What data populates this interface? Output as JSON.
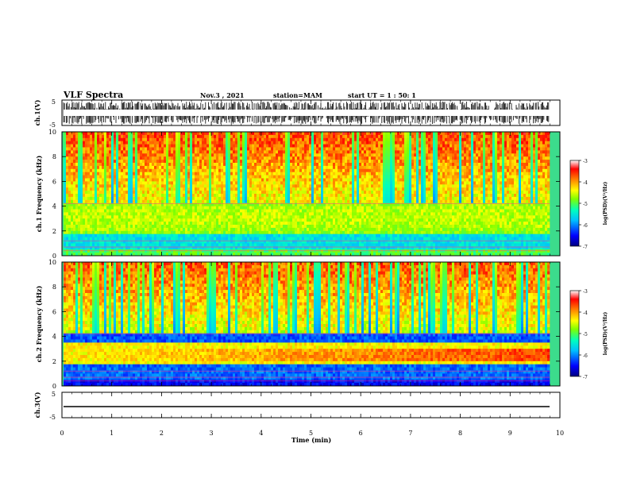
{
  "header": {
    "title": "VLF Spectra",
    "date": "Nov.3 , 2021",
    "station": "station=MAM",
    "start": "start UT = 1 : 50: 1"
  },
  "chart_data": [
    {
      "type": "line",
      "name": "ch1-waveform",
      "ylabel": "ch.1(V)",
      "ylim": [
        -5,
        5
      ],
      "yticks": [
        "5",
        "-5"
      ],
      "xlim": [
        0,
        10
      ],
      "description_fill": "dense black waveform spanning full range"
    },
    {
      "type": "heatmap",
      "name": "ch1-spectrogram",
      "ylabel": "ch.1 Frequency (kHz)",
      "ylim": [
        0,
        10
      ],
      "yticks": [
        "0",
        "2",
        "4",
        "6",
        "8",
        "10"
      ],
      "xlim": [
        0,
        10
      ],
      "colorbar": {
        "label": "log(PSD)(V²/Hz)",
        "range": [
          -7,
          -3
        ],
        "ticks": [
          "-3",
          "-4",
          "-5",
          "-6",
          "-7"
        ]
      }
    },
    {
      "type": "heatmap",
      "name": "ch2-spectrogram",
      "ylabel": "ch.2 Frequency (kHz)",
      "ylim": [
        0,
        10
      ],
      "yticks": [
        "0",
        "2",
        "4",
        "6",
        "8",
        "10"
      ],
      "xlim": [
        0,
        10
      ],
      "colorbar": {
        "label": "log(PSD)(V²/Hz)",
        "range": [
          -7,
          -3
        ],
        "ticks": [
          "-3",
          "-4",
          "-5",
          "-6",
          "-7"
        ]
      }
    },
    {
      "type": "line",
      "name": "ch3-waveform",
      "ylabel": "ch.3(V)",
      "ylim": [
        -5,
        5
      ],
      "yticks": [
        "5",
        "-5"
      ],
      "xlim": [
        0,
        10
      ],
      "value": 0
    }
  ],
  "xaxis": {
    "label": "Time (min)",
    "ticks": [
      "0",
      "1",
      "2",
      "3",
      "4",
      "5",
      "6",
      "7",
      "8",
      "9",
      "10"
    ]
  },
  "colors": {
    "scale": [
      "#00007f",
      "#0000ff",
      "#00bfff",
      "#00ffbf",
      "#7fff00",
      "#ffff00",
      "#ff7f00",
      "#ff0000",
      "#ffffff"
    ]
  }
}
